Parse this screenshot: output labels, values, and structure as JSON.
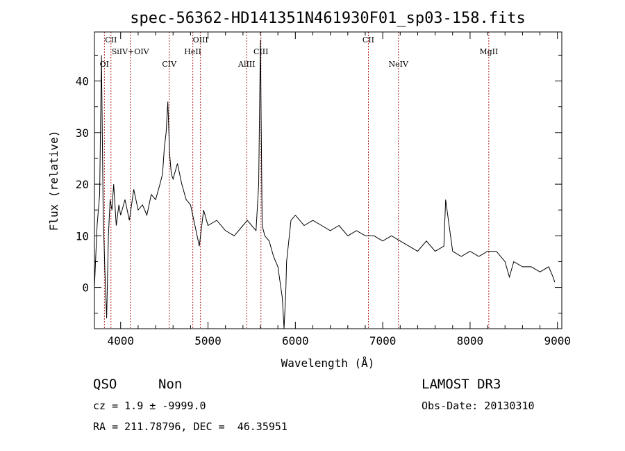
{
  "chart_data": {
    "type": "line",
    "title": "spec-56362-HD141351N461930F01_sp03-158.fits",
    "xlabel": "Wavelength (Å)",
    "ylabel": "Flux (relative)",
    "xlim": [
      3700,
      9050
    ],
    "ylim": [
      -8,
      49.5
    ],
    "x_ticks": [
      4000,
      5000,
      6000,
      7000,
      8000,
      9000
    ],
    "y_ticks": [
      0,
      10,
      20,
      30,
      40
    ],
    "grid": false,
    "legend": "none",
    "line_color": "#000000",
    "marker_color": "#b22222",
    "series": [
      {
        "x": [
          3700,
          3730,
          3760,
          3780,
          3800,
          3820,
          3840,
          3860,
          3880,
          3900,
          3920,
          3950,
          3980,
          4000,
          4050,
          4100,
          4150,
          4200,
          4250,
          4300,
          4350,
          4400,
          4450,
          4480,
          4500,
          4520,
          4540,
          4560,
          4580,
          4600,
          4650,
          4700,
          4750,
          4800,
          4850,
          4900,
          4950,
          5000,
          5100,
          5200,
          5300,
          5400,
          5450,
          5500,
          5550,
          5580,
          5600,
          5620,
          5650,
          5700,
          5750,
          5800,
          5850,
          5870,
          5890,
          5900,
          5950,
          6000,
          6100,
          6200,
          6300,
          6400,
          6500,
          6600,
          6700,
          6800,
          6900,
          7000,
          7100,
          7200,
          7300,
          7400,
          7500,
          7600,
          7700,
          7720,
          7800,
          7900,
          8000,
          8100,
          8200,
          8300,
          8400,
          8450,
          8500,
          8600,
          8700,
          8800,
          8900,
          8950,
          8970
        ],
        "y": [
          0,
          12,
          18,
          45,
          14,
          3,
          -6,
          10,
          17,
          15,
          20,
          12,
          16,
          14,
          17,
          13,
          19,
          15,
          16,
          14,
          18,
          17,
          20,
          22,
          27,
          30,
          36,
          26,
          22,
          21,
          24,
          20,
          17,
          16,
          12,
          8,
          15,
          12,
          13,
          11,
          10,
          12,
          13,
          12,
          11,
          20,
          48,
          12,
          10,
          9,
          6,
          4,
          -2,
          -8,
          -1,
          5,
          13,
          14,
          12,
          13,
          12,
          11,
          12,
          10,
          11,
          10,
          10,
          9,
          10,
          9,
          8,
          7,
          9,
          7,
          8,
          17,
          7,
          6,
          7,
          6,
          7,
          7,
          5,
          2,
          5,
          4,
          4,
          3,
          4,
          2,
          1
        ]
      }
    ],
    "lines": [
      {
        "label": "OI",
        "x": 3814
      },
      {
        "label": "CII",
        "x": 3889
      },
      {
        "label": "SiIV+OIV",
        "x": 4111
      },
      {
        "label": "CIV",
        "x": 4556
      },
      {
        "label": "HeII",
        "x": 4826
      },
      {
        "label": "OIII",
        "x": 4914
      },
      {
        "label": "AlIII",
        "x": 5443
      },
      {
        "label": "CIII",
        "x": 5606
      },
      {
        "label": "CII",
        "x": 6836
      },
      {
        "label": "NeIV",
        "x": 7180
      },
      {
        "label": "MgII",
        "x": 8214
      }
    ]
  },
  "footer": {
    "class_label": "QSO",
    "subclass_label": "Non",
    "survey": "LAMOST DR3",
    "cz_line": "cz = 1.9 ± -9999.0",
    "obs_date": "Obs-Date: 20130310",
    "coords": "RA = 211.78796, DEC =  46.35951"
  }
}
